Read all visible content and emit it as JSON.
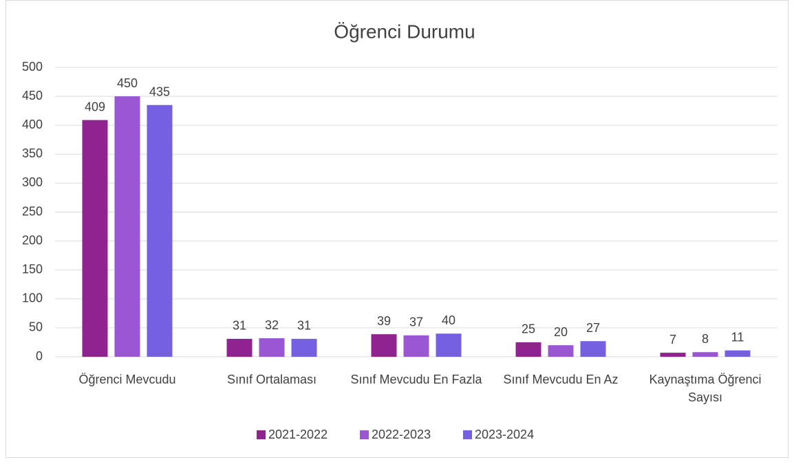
{
  "chart_data": {
    "type": "bar",
    "title": "Öğrenci Durumu",
    "categories": [
      "Öğrenci Mevcudu",
      "Sınıf Ortalaması",
      "Sınıf Mevcudu En Fazla",
      "Sınıf Mevcudu En Az",
      "Kaynaştıma Öğrenci Sayısı"
    ],
    "series": [
      {
        "name": "2021-2022",
        "color": "#912391",
        "values": [
          409,
          31,
          39,
          25,
          7
        ]
      },
      {
        "name": "2022-2023",
        "color": "#9b57d3",
        "values": [
          450,
          32,
          37,
          20,
          8
        ]
      },
      {
        "name": "2023-2024",
        "color": "#7460e0",
        "values": [
          435,
          31,
          40,
          27,
          11
        ]
      }
    ],
    "ylim": [
      0,
      500
    ],
    "yticks": [
      0,
      50,
      100,
      150,
      200,
      250,
      300,
      350,
      400,
      450,
      500
    ],
    "grid": true,
    "legend": "bottom"
  }
}
